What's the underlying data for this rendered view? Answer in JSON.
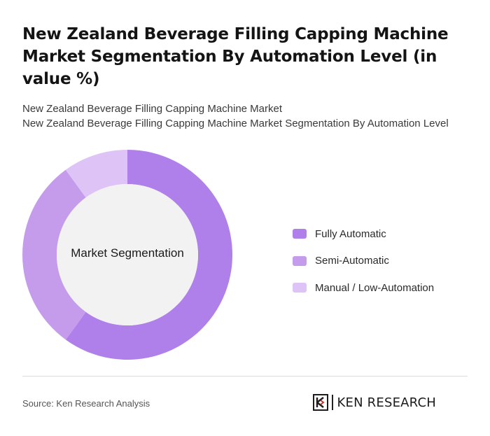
{
  "title": "New Zealand Beverage Filling Capping Machine Market Segmentation By Automation Level (in value %)",
  "subtitle_line1": "New Zealand Beverage Filling Capping Machine Market",
  "subtitle_line2": "New Zealand Beverage Filling Capping Machine Market Segmentation By Automation Level",
  "chart_data": {
    "type": "pie",
    "center_label": "Market Segmentation",
    "categories": [
      "Fully Automatic",
      "Semi-Automatic",
      "Manual / Low-Automation"
    ],
    "values": [
      60,
      30,
      10
    ],
    "colors": [
      "#af80ea",
      "#c59cec",
      "#dec4f6"
    ]
  },
  "footer": {
    "source": "Source: Ken Research Analysis",
    "logo_text": "KEN RESEARCH"
  }
}
